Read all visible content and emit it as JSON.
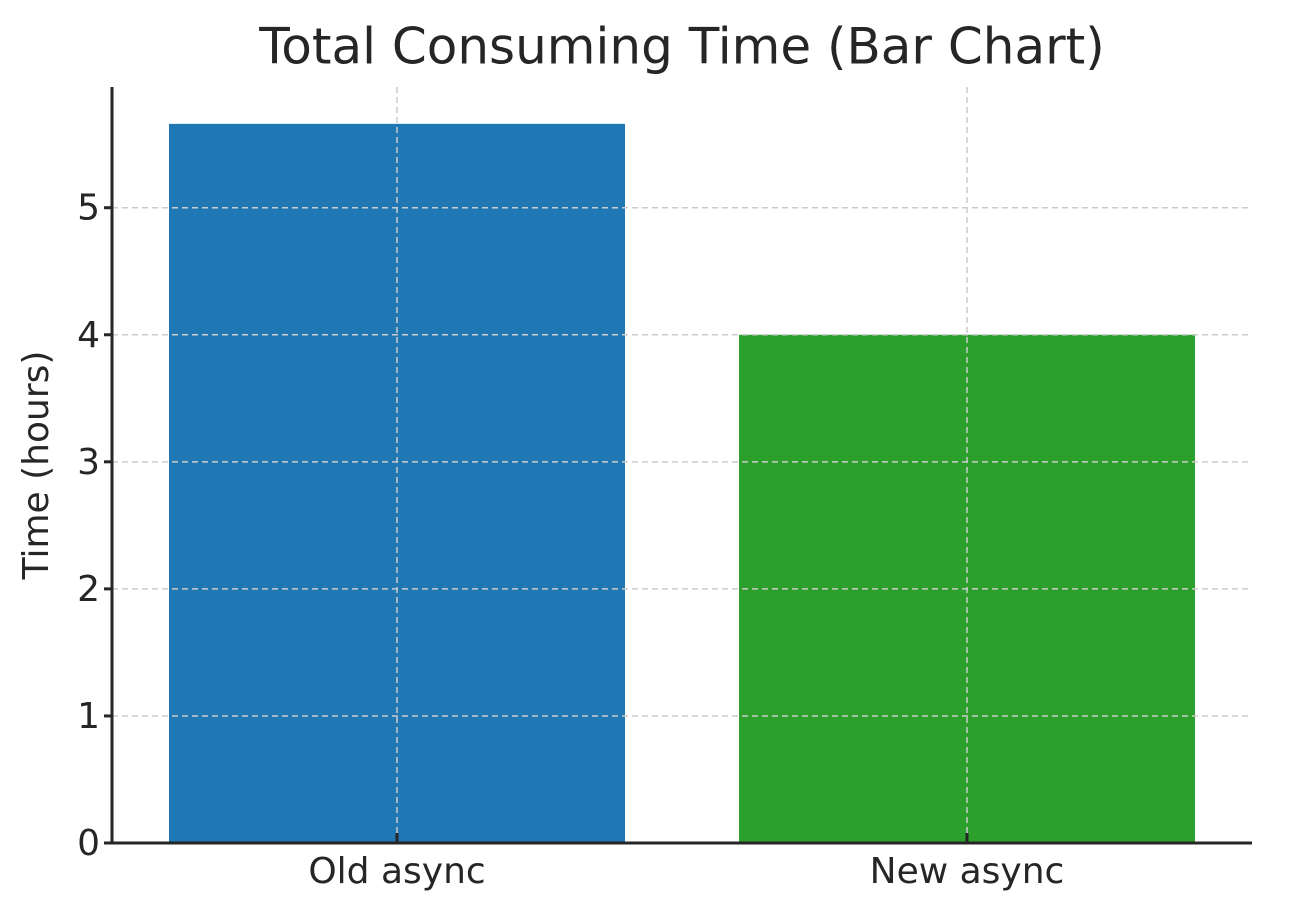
{
  "chart_data": {
    "type": "bar",
    "title": "Total Consuming Time (Bar Chart)",
    "y_label": "Time (hours)",
    "categories": [
      "Old async",
      "New async"
    ],
    "values": [
      5.66,
      4.0
    ],
    "colors": [
      "#1f77b4",
      "#2ca02c"
    ],
    "ylim": [
      0,
      5.95
    ],
    "yticks": [
      0,
      1,
      2,
      3,
      4,
      5
    ],
    "grid": true
  }
}
